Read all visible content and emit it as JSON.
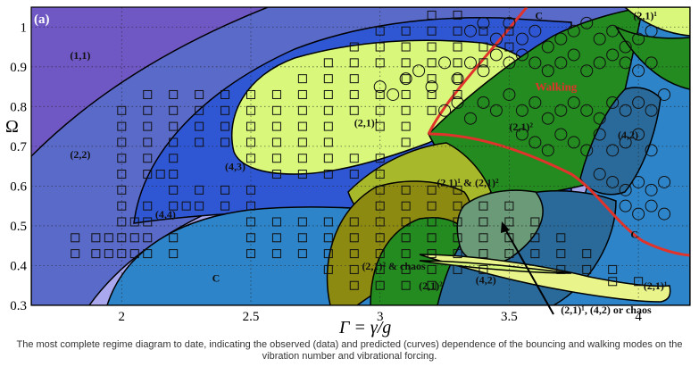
{
  "chart_data": {
    "type": "scatter",
    "panel_label": "(a)",
    "xlabel": "Γ = γ/g",
    "ylabel": "Ω",
    "xlim": [
      1.65,
      4.2
    ],
    "ylim": [
      0.3,
      1.05
    ],
    "x_ticks": [
      "2",
      "2.5",
      "3",
      "3.5",
      "4"
    ],
    "y_ticks": [
      "0.3",
      "0.4",
      "0.5",
      "0.6",
      "0.7",
      "0.8",
      "0.9",
      "1"
    ],
    "grid": true,
    "region_labels": [
      {
        "text": "(1,1)",
        "x": 1.8,
        "y": 0.92
      },
      {
        "text": "(2,2)",
        "x": 1.8,
        "y": 0.67
      },
      {
        "text": "(4,4)",
        "x": 2.13,
        "y": 0.52
      },
      {
        "text": "(4,3)",
        "x": 2.4,
        "y": 0.64
      },
      {
        "text": "C",
        "x": 2.35,
        "y": 0.36
      },
      {
        "text": "(2,1)¹",
        "x": 2.9,
        "y": 0.75
      },
      {
        "text": "(2,1)¹ & (2,1)²",
        "x": 3.22,
        "y": 0.6
      },
      {
        "text": "(2,1)² & chaos",
        "x": 2.93,
        "y": 0.39
      },
      {
        "text": "(2,1)²",
        "x": 3.15,
        "y": 0.34
      },
      {
        "text": "(4,2)",
        "x": 3.37,
        "y": 0.355
      },
      {
        "text": "(2,1)²",
        "x": 3.5,
        "y": 0.74
      },
      {
        "text": "Walking",
        "x": 3.6,
        "y": 0.84
      },
      {
        "text": "(4,2)",
        "x": 3.92,
        "y": 0.72
      },
      {
        "text": "C",
        "x": 3.6,
        "y": 1.02
      },
      {
        "text": "(2,1)¹",
        "x": 3.98,
        "y": 1.02
      },
      {
        "text": "C",
        "x": 3.97,
        "y": 0.47
      },
      {
        "text": "(2,1)¹",
        "x": 4.02,
        "y": 0.34
      },
      {
        "text": "(2,1)¹, (4,2) or chaos",
        "x": 3.7,
        "y": 0.28
      }
    ],
    "series": [
      {
        "marker": "square",
        "points": [
          [
            1.82,
            0.47
          ],
          [
            1.82,
            0.43
          ],
          [
            1.9,
            0.47
          ],
          [
            1.9,
            0.43
          ],
          [
            1.95,
            0.47
          ],
          [
            1.95,
            0.43
          ],
          [
            2.0,
            0.51
          ],
          [
            2.0,
            0.47
          ],
          [
            2.0,
            0.43
          ],
          [
            2.05,
            0.51
          ],
          [
            2.05,
            0.47
          ],
          [
            2.05,
            0.43
          ],
          [
            2.1,
            0.51
          ],
          [
            2.1,
            0.47
          ],
          [
            2.1,
            0.43
          ],
          [
            2.2,
            0.47
          ],
          [
            2.2,
            0.43
          ],
          [
            2.0,
            0.79
          ],
          [
            2.0,
            0.75
          ],
          [
            2.0,
            0.71
          ],
          [
            2.0,
            0.67
          ],
          [
            2.0,
            0.63
          ],
          [
            2.0,
            0.59
          ],
          [
            2.0,
            0.55
          ],
          [
            2.1,
            0.83
          ],
          [
            2.1,
            0.79
          ],
          [
            2.1,
            0.75
          ],
          [
            2.1,
            0.71
          ],
          [
            2.1,
            0.67
          ],
          [
            2.1,
            0.63
          ],
          [
            2.1,
            0.55
          ],
          [
            2.15,
            0.63
          ],
          [
            2.2,
            0.83
          ],
          [
            2.2,
            0.79
          ],
          [
            2.2,
            0.75
          ],
          [
            2.2,
            0.71
          ],
          [
            2.2,
            0.67
          ],
          [
            2.2,
            0.63
          ],
          [
            2.2,
            0.59
          ],
          [
            2.2,
            0.55
          ],
          [
            2.25,
            0.55
          ],
          [
            2.3,
            0.55
          ],
          [
            2.3,
            0.59
          ],
          [
            2.4,
            0.55
          ],
          [
            2.4,
            0.59
          ],
          [
            2.5,
            0.59
          ],
          [
            2.5,
            0.55
          ],
          [
            2.3,
            0.83
          ],
          [
            2.3,
            0.79
          ],
          [
            2.3,
            0.75
          ],
          [
            2.3,
            0.71
          ],
          [
            2.4,
            0.83
          ],
          [
            2.4,
            0.79
          ],
          [
            2.4,
            0.75
          ],
          [
            2.4,
            0.71
          ],
          [
            2.5,
            0.83
          ],
          [
            2.5,
            0.79
          ],
          [
            2.5,
            0.75
          ],
          [
            2.5,
            0.71
          ],
          [
            2.5,
            0.67
          ],
          [
            2.6,
            0.83
          ],
          [
            2.6,
            0.79
          ],
          [
            2.6,
            0.75
          ],
          [
            2.6,
            0.71
          ],
          [
            2.6,
            0.67
          ],
          [
            2.7,
            0.87
          ],
          [
            2.7,
            0.83
          ],
          [
            2.7,
            0.79
          ],
          [
            2.7,
            0.75
          ],
          [
            2.7,
            0.71
          ],
          [
            2.7,
            0.67
          ],
          [
            2.8,
            0.91
          ],
          [
            2.8,
            0.87
          ],
          [
            2.8,
            0.83
          ],
          [
            2.8,
            0.79
          ],
          [
            2.8,
            0.75
          ],
          [
            2.8,
            0.71
          ],
          [
            2.8,
            0.67
          ],
          [
            2.9,
            0.95
          ],
          [
            2.9,
            0.91
          ],
          [
            2.9,
            0.87
          ],
          [
            2.9,
            0.83
          ],
          [
            2.9,
            0.79
          ],
          [
            2.9,
            0.67
          ],
          [
            3.0,
            0.99
          ],
          [
            3.0,
            0.95
          ],
          [
            3.0,
            0.91
          ],
          [
            3.0,
            0.83
          ],
          [
            3.0,
            0.79
          ],
          [
            3.0,
            0.75
          ],
          [
            3.0,
            0.67
          ],
          [
            3.1,
            0.99
          ],
          [
            3.1,
            0.95
          ],
          [
            3.1,
            0.91
          ],
          [
            3.1,
            0.87
          ],
          [
            3.1,
            0.83
          ],
          [
            3.1,
            0.79
          ],
          [
            3.1,
            0.75
          ],
          [
            3.1,
            0.71
          ],
          [
            3.2,
            1.03
          ],
          [
            3.2,
            0.99
          ],
          [
            3.2,
            0.95
          ],
          [
            3.2,
            0.91
          ],
          [
            3.2,
            0.87
          ],
          [
            3.2,
            0.83
          ],
          [
            3.2,
            0.79
          ],
          [
            3.3,
            1.03
          ],
          [
            3.3,
            0.99
          ],
          [
            3.3,
            0.95
          ],
          [
            3.3,
            0.91
          ],
          [
            3.3,
            0.87
          ],
          [
            3.3,
            0.83
          ],
          [
            3.4,
            0.99
          ],
          [
            3.4,
            0.95
          ],
          [
            3.4,
            0.91
          ],
          [
            3.5,
            0.99
          ],
          [
            3.5,
            0.95
          ],
          [
            2.6,
            0.63
          ],
          [
            2.7,
            0.63
          ],
          [
            2.8,
            0.63
          ],
          [
            2.9,
            0.63
          ],
          [
            3.0,
            0.63
          ],
          [
            2.5,
            0.51
          ],
          [
            2.5,
            0.47
          ],
          [
            2.5,
            0.43
          ],
          [
            2.6,
            0.51
          ],
          [
            2.6,
            0.47
          ],
          [
            2.6,
            0.43
          ],
          [
            2.7,
            0.51
          ],
          [
            2.7,
            0.47
          ],
          [
            2.7,
            0.43
          ],
          [
            2.8,
            0.51
          ],
          [
            2.8,
            0.47
          ],
          [
            2.8,
            0.43
          ],
          [
            2.8,
            0.39
          ],
          [
            2.9,
            0.51
          ],
          [
            2.9,
            0.47
          ],
          [
            2.9,
            0.43
          ],
          [
            2.9,
            0.39
          ],
          [
            2.9,
            0.35
          ],
          [
            3.0,
            0.59
          ],
          [
            3.0,
            0.55
          ],
          [
            3.0,
            0.51
          ],
          [
            3.0,
            0.47
          ],
          [
            3.0,
            0.43
          ],
          [
            3.0,
            0.39
          ],
          [
            3.0,
            0.35
          ],
          [
            3.1,
            0.59
          ],
          [
            3.1,
            0.55
          ],
          [
            3.1,
            0.51
          ],
          [
            3.1,
            0.47
          ],
          [
            3.1,
            0.43
          ],
          [
            3.1,
            0.39
          ],
          [
            3.1,
            0.35
          ],
          [
            3.2,
            0.59
          ],
          [
            3.2,
            0.55
          ],
          [
            3.2,
            0.51
          ],
          [
            3.2,
            0.47
          ],
          [
            3.2,
            0.43
          ],
          [
            3.2,
            0.39
          ],
          [
            3.2,
            0.35
          ],
          [
            3.3,
            0.59
          ],
          [
            3.3,
            0.55
          ],
          [
            3.3,
            0.51
          ],
          [
            3.3,
            0.47
          ],
          [
            3.3,
            0.43
          ],
          [
            3.3,
            0.39
          ],
          [
            3.4,
            0.55
          ],
          [
            3.4,
            0.51
          ],
          [
            3.4,
            0.47
          ],
          [
            3.4,
            0.43
          ],
          [
            3.4,
            0.39
          ],
          [
            3.5,
            0.55
          ],
          [
            3.5,
            0.51
          ],
          [
            3.5,
            0.47
          ],
          [
            3.5,
            0.43
          ],
          [
            3.6,
            0.51
          ],
          [
            3.6,
            0.47
          ],
          [
            3.6,
            0.43
          ],
          [
            3.7,
            0.47
          ],
          [
            3.7,
            0.43
          ],
          [
            3.7,
            0.39
          ],
          [
            3.8,
            0.43
          ],
          [
            3.8,
            0.39
          ],
          [
            3.9,
            0.39
          ],
          [
            3.9,
            0.36
          ],
          [
            4.0,
            0.36
          ]
        ]
      },
      {
        "marker": "circle",
        "points": [
          [
            3.35,
            0.99
          ],
          [
            3.4,
            1.01
          ],
          [
            3.45,
            0.97
          ],
          [
            3.5,
            1.01
          ],
          [
            3.55,
            0.97
          ],
          [
            3.6,
            0.99
          ],
          [
            3.65,
            0.95
          ],
          [
            3.7,
            0.97
          ],
          [
            3.75,
            0.99
          ],
          [
            3.8,
            1.01
          ],
          [
            3.85,
            0.97
          ],
          [
            3.9,
            0.99
          ],
          [
            3.95,
            0.95
          ],
          [
            4.0,
            0.97
          ],
          [
            4.05,
            0.99
          ],
          [
            3.1,
            0.87
          ],
          [
            3.15,
            0.89
          ],
          [
            3.2,
            0.85
          ],
          [
            3.25,
            0.91
          ],
          [
            3.3,
            0.87
          ],
          [
            3.35,
            0.91
          ],
          [
            3.4,
            0.89
          ],
          [
            3.45,
            0.93
          ],
          [
            3.5,
            0.91
          ],
          [
            3.55,
            0.93
          ],
          [
            3.6,
            0.91
          ],
          [
            3.65,
            0.89
          ],
          [
            3.7,
            0.91
          ],
          [
            3.75,
            0.93
          ],
          [
            3.8,
            0.89
          ],
          [
            3.85,
            0.91
          ],
          [
            3.9,
            0.93
          ],
          [
            3.95,
            0.91
          ],
          [
            4.0,
            0.89
          ],
          [
            4.05,
            0.91
          ],
          [
            3.0,
            0.85
          ],
          [
            3.05,
            0.83
          ],
          [
            3.25,
            0.79
          ],
          [
            3.3,
            0.81
          ],
          [
            3.35,
            0.77
          ],
          [
            3.4,
            0.81
          ],
          [
            3.45,
            0.79
          ],
          [
            3.5,
            0.83
          ],
          [
            3.55,
            0.79
          ],
          [
            3.6,
            0.81
          ],
          [
            3.65,
            0.77
          ],
          [
            3.7,
            0.79
          ],
          [
            3.75,
            0.81
          ],
          [
            3.8,
            0.79
          ],
          [
            3.85,
            0.77
          ],
          [
            3.9,
            0.81
          ],
          [
            3.95,
            0.79
          ],
          [
            4.0,
            0.81
          ],
          [
            4.05,
            0.79
          ],
          [
            4.1,
            0.83
          ],
          [
            3.55,
            0.73
          ],
          [
            3.6,
            0.71
          ],
          [
            3.65,
            0.69
          ],
          [
            3.7,
            0.73
          ],
          [
            3.75,
            0.71
          ],
          [
            3.8,
            0.69
          ],
          [
            3.85,
            0.73
          ],
          [
            3.9,
            0.69
          ],
          [
            3.95,
            0.71
          ],
          [
            4.0,
            0.73
          ],
          [
            4.05,
            0.69
          ],
          [
            3.85,
            0.63
          ],
          [
            3.9,
            0.61
          ],
          [
            3.95,
            0.59
          ],
          [
            4.0,
            0.61
          ],
          [
            4.05,
            0.59
          ],
          [
            4.1,
            0.61
          ],
          [
            3.95,
            0.55
          ],
          [
            4.0,
            0.53
          ],
          [
            4.05,
            0.55
          ],
          [
            4.1,
            0.53
          ]
        ]
      }
    ]
  },
  "caption": "The most complete regime diagram to date, indicating the observed (data) and predicted (curves) dependence of the bouncing and walking modes on the vibration number and vibrational forcing."
}
